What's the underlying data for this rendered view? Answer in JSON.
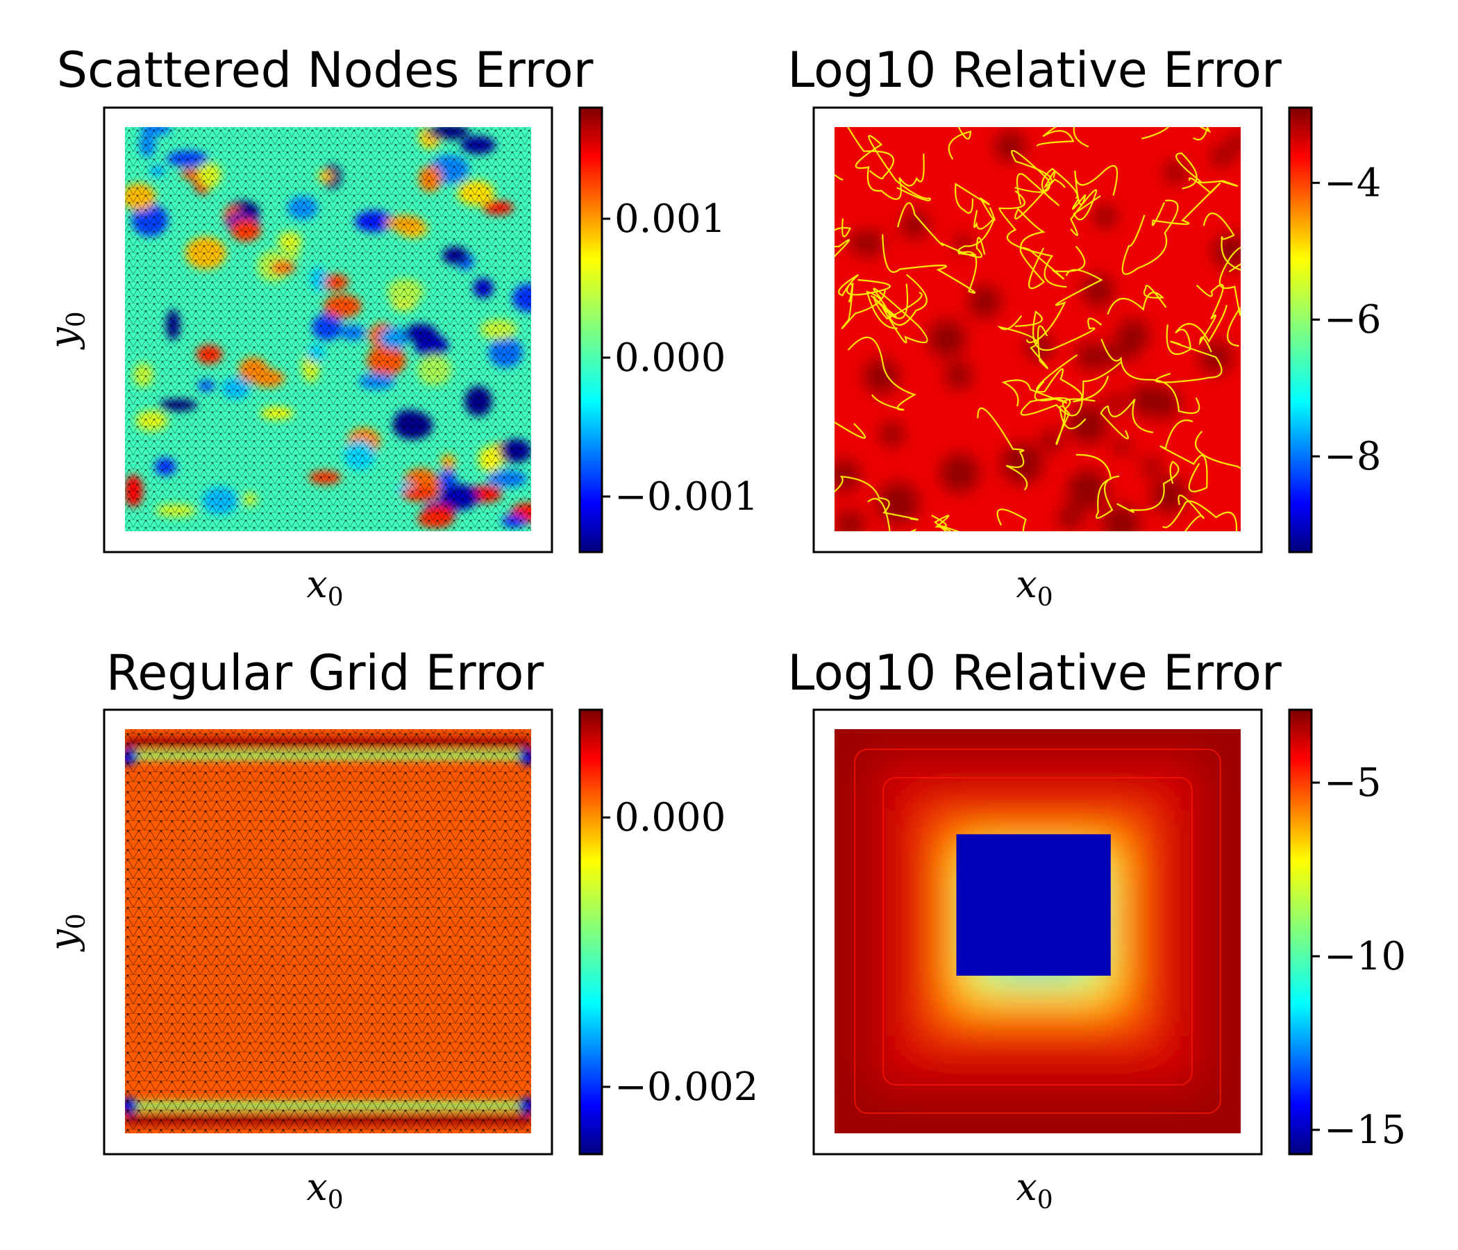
{
  "colormap": [
    "#00007f",
    "#0000ff",
    "#007fff",
    "#00ffff",
    "#7fff7f",
    "#ffff00",
    "#ff7f00",
    "#ff0000",
    "#7f0000"
  ],
  "chart_data": [
    {
      "type": "heatmap",
      "title": "Scattered Nodes Error",
      "xlabel": "x",
      "xlabel_sub": "0",
      "ylabel": "y",
      "ylabel_sub": "0",
      "grid": false,
      "mesh_overlay": true,
      "colorbar": {
        "min": -0.0014,
        "max": 0.0018,
        "ticks": [
          0.001,
          0.0,
          -0.001
        ],
        "tick_labels": [
          "0.001",
          "0.000",
          "−0.001"
        ]
      },
      "field": "random blobs of alternating sign on a near-zero background"
    },
    {
      "type": "heatmap",
      "title": "Log10 Relative Error",
      "xlabel": "x",
      "xlabel_sub": "0",
      "ylabel": "",
      "ylabel_sub": "",
      "grid": false,
      "mesh_overlay": false,
      "colorbar": {
        "min": -9.4,
        "max": -2.9,
        "ticks": [
          -4,
          -6,
          -8
        ],
        "tick_labels": [
          "−4",
          "−6",
          "−8"
        ]
      },
      "field": "mostly between -4 and -3, thin yellow-green contour lines down to about -5.5"
    },
    {
      "type": "heatmap",
      "title": "Regular Grid Error",
      "xlabel": "x",
      "xlabel_sub": "0",
      "ylabel": "y",
      "ylabel_sub": "0",
      "grid": false,
      "mesh_overlay": true,
      "colorbar": {
        "min": -0.0025,
        "max": 0.0008,
        "ticks": [
          0.0,
          -0.002
        ],
        "tick_labels": [
          "0.000",
          "−0.002"
        ]
      },
      "field": "near-zero interior, positive bands along top and bottom boundary rows, negative spots at corners"
    },
    {
      "type": "heatmap",
      "title": "Log10 Relative Error",
      "xlabel": "x",
      "xlabel_sub": "0",
      "ylabel": "",
      "ylabel_sub": "",
      "grid": false,
      "mesh_overlay": false,
      "colorbar": {
        "min": -15.7,
        "max": -2.9,
        "ticks": [
          -5,
          -10,
          -15
        ],
        "tick_labels": [
          "−5",
          "−10",
          "−15"
        ]
      },
      "field": "about -3.5 near the boundary, decreasing to about -15 in a central square"
    }
  ]
}
